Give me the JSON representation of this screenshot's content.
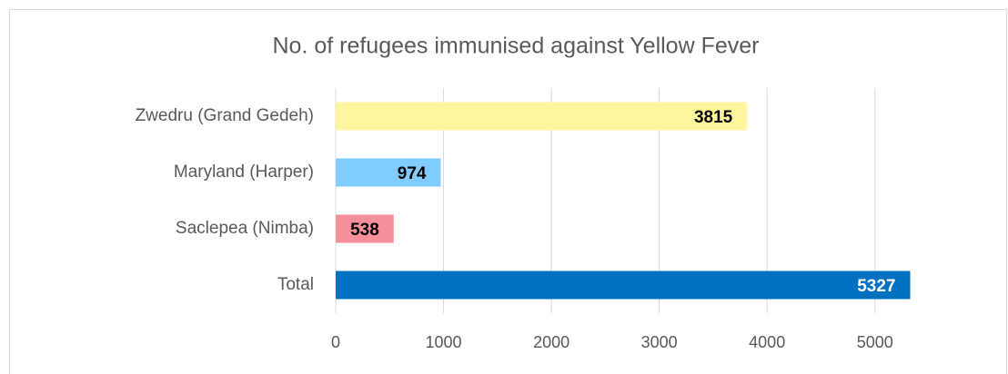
{
  "chart_data": {
    "type": "barh",
    "title": "No. of refugees immunised against Yellow Fever",
    "categories": [
      "Zwedru (Grand Gedeh)",
      "Maryland (Harper)",
      "Saclepea (Nimba)",
      "Total"
    ],
    "values": [
      3815,
      974,
      538,
      5327
    ],
    "colors": [
      "#FFF59D",
      "#80CCFF",
      "#F4909A",
      "#0070C0"
    ],
    "value_label_colors": [
      "#000000",
      "#000000",
      "#000000",
      "#FFFFFF"
    ],
    "xlim": [
      0,
      5500
    ],
    "xticks": [
      0,
      1000,
      2000,
      3000,
      4000,
      5000
    ],
    "grid": true
  }
}
